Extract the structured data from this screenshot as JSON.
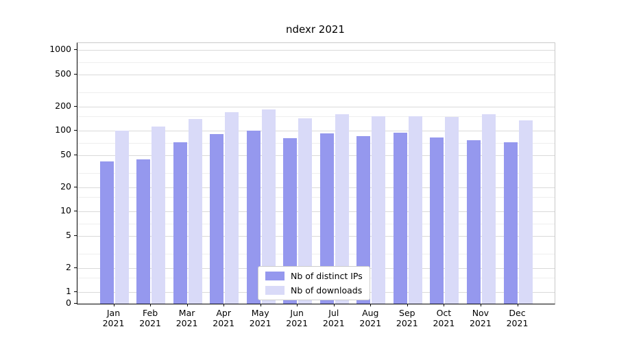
{
  "chart_data": {
    "type": "bar",
    "title": "ndexr 2021",
    "yscale": "symlog",
    "grid": true,
    "legend_position": "lower center",
    "categories": [
      {
        "month": "Jan",
        "year": "2021"
      },
      {
        "month": "Feb",
        "year": "2021"
      },
      {
        "month": "Mar",
        "year": "2021"
      },
      {
        "month": "Apr",
        "year": "2021"
      },
      {
        "month": "May",
        "year": "2021"
      },
      {
        "month": "Jun",
        "year": "2021"
      },
      {
        "month": "Jul",
        "year": "2021"
      },
      {
        "month": "Aug",
        "year": "2021"
      },
      {
        "month": "Sep",
        "year": "2021"
      },
      {
        "month": "Oct",
        "year": "2021"
      },
      {
        "month": "Nov",
        "year": "2021"
      },
      {
        "month": "Dec",
        "year": "2021"
      }
    ],
    "series": [
      {
        "name": "Nb of distinct IPs",
        "color": "#9598ee",
        "values": [
          42,
          44,
          72,
          90,
          100,
          80,
          92,
          86,
          95,
          83,
          76,
          72
        ]
      },
      {
        "name": "Nb of downloads",
        "color": "#d9daf8",
        "values": [
          100,
          112,
          140,
          168,
          182,
          142,
          160,
          152,
          150,
          148,
          160,
          135
        ]
      }
    ],
    "y_axis": {
      "ticks": [
        {
          "label": "1000",
          "value": 1000
        },
        {
          "label": "500",
          "value": 500
        },
        {
          "label": "200",
          "value": 200
        },
        {
          "label": "100",
          "value": 100
        },
        {
          "label": "50",
          "value": 50
        },
        {
          "label": "20",
          "value": 20
        },
        {
          "label": "10",
          "value": 10
        },
        {
          "label": "5",
          "value": 5
        },
        {
          "label": "2",
          "value": 2
        },
        {
          "label": "1",
          "value": 1
        },
        {
          "label": "0",
          "value": 0
        }
      ],
      "minor_gridlines": [
        700,
        300,
        150,
        70,
        30,
        15,
        7,
        3,
        1.5
      ],
      "range_top": 1000
    }
  }
}
